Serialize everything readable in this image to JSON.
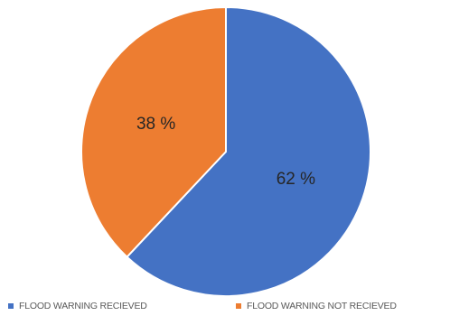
{
  "chart_data": {
    "type": "pie",
    "title": "",
    "slices": [
      {
        "label": "FLOOD WARNING RECIEVED",
        "value": 62,
        "value_label": "62 %",
        "color": "#4472c4"
      },
      {
        "label": "FLOOD WARNING NOT RECIEVED",
        "value": 38,
        "value_label": "38 %",
        "color": "#ed7d31"
      }
    ],
    "start_angle": "12 o'clock",
    "direction": "clockwise",
    "legend_position": "bottom"
  },
  "legend": {
    "items": [
      {
        "label": "FLOOD WARNING RECIEVED",
        "color": "#4472c4"
      },
      {
        "label": "FLOOD WARNING NOT RECIEVED",
        "color": "#ed7d31"
      }
    ]
  }
}
